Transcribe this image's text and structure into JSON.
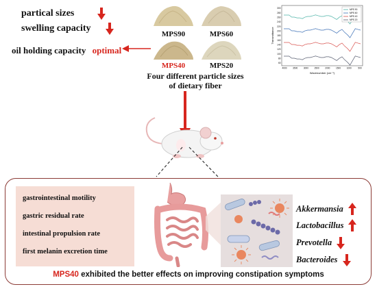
{
  "properties": {
    "particle_sizes": "partical sizes",
    "swelling_capacity": "swelling capacity",
    "oil_holding_capacity": "oil holding capacity",
    "optimal": "optimal"
  },
  "powders": [
    {
      "label": "MPS90",
      "color": "#d8c9a0"
    },
    {
      "label": "MPS60",
      "color": "#d9cdb0"
    },
    {
      "label": "MPS40",
      "color": "#cbb78c"
    },
    {
      "label": "MPS20",
      "color": "#ddd6bd"
    }
  ],
  "powders_caption_line1": "Four different particle sizes",
  "powders_caption_line2": "of dietary fiber",
  "ftir_chart": {
    "xlabel": "Wavenumber (cm⁻¹)",
    "ylabel": "Transmittance",
    "x_ticks": [
      "4000",
      "3500",
      "3000",
      "2500",
      "2000",
      "1500",
      "1000",
      "500"
    ],
    "y_ticks": [
      "300",
      "280",
      "260",
      "240",
      "220",
      "200",
      "180",
      "160",
      "140",
      "120",
      "100",
      "80",
      "60"
    ],
    "legend": [
      "MPS 90",
      "MPS 60",
      "MPS 40",
      "MPS 20"
    ],
    "colors": [
      "#4cb3a7",
      "#3b6fb5",
      "#d9534f",
      "#555b6e"
    ]
  },
  "indicators": [
    "gastrointestinal motility",
    "gastric residual rate",
    "intestinal propulsion rate",
    "first melanin excretion time"
  ],
  "bacteria": [
    {
      "name": "Akkermansia",
      "trend": "up"
    },
    {
      "name": "Lactobacillus",
      "trend": "up"
    },
    {
      "name": "Prevotella",
      "trend": "down"
    },
    {
      "name": "Bacteroides",
      "trend": "down"
    }
  ],
  "conclusion": {
    "highlight": "MPS40",
    "text": " exhibited the better effects on improving constipation symptoms"
  },
  "accent_color": "#d7261e"
}
